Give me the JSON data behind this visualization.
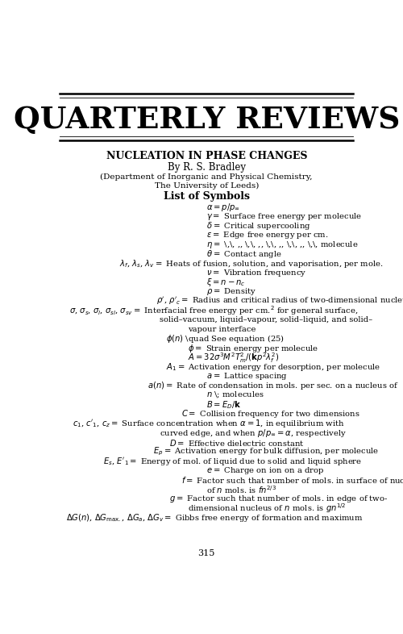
{
  "title_journal": "QUARTERLY REVIEWS",
  "paper_title": "NUCLEATION IN PHASE CHANGES",
  "author": "By R. S. Bradley",
  "affiliation1": "(Department of Inorganic and Physical Chemistry,",
  "affiliation2": "The University of Leeds)",
  "section": "List of Symbols",
  "page_number": "315",
  "symbol_lines": [
    [
      0.5,
      "$\\alpha = p/p_\\infty$"
    ],
    [
      0.5,
      "$\\gamma =$ Surface free energy per molecule"
    ],
    [
      0.5,
      "$\\delta =$ Critical supercooling"
    ],
    [
      0.5,
      "$\\varepsilon =$ Edge free energy per cm."
    ],
    [
      0.5,
      "$\\eta =$ \\,\\, ,, \\,\\, ,, \\,\\, ,, \\,\\, ,, \\,\\, molecule"
    ],
    [
      0.5,
      "$\\theta =$ Contact angle"
    ],
    [
      0.22,
      "$\\lambda_f$, $\\lambda_s$, $\\lambda_v =$ Heats of fusion, solution, and vaporisation, per mole."
    ],
    [
      0.5,
      "$\\nu =$ Vibration frequency"
    ],
    [
      0.5,
      "$\\xi = n - n_c$"
    ],
    [
      0.5,
      "$\\rho =$ Density"
    ],
    [
      0.34,
      "$\\rho'$, $\\rho'_c =$ Radius and critical radius of two-dimensional nucleus"
    ],
    [
      0.06,
      "$\\sigma$, $\\sigma_s$, $\\sigma_l$, $\\sigma_{sl}$, $\\sigma_{sv} =$ Interfacial free energy per cm.$^2$ for general surface,"
    ],
    [
      0.35,
      "solid–vacuum, liquid–vapour, solid–liquid, and solid–"
    ],
    [
      0.44,
      "vapour interface"
    ],
    [
      0.37,
      "$\\phi(n)$ \\quad See equation (25)"
    ],
    [
      0.44,
      "$\\phi =$ Strain energy per molecule"
    ],
    [
      0.44,
      "$A = 32\\sigma^3 M^2 T_m^2/(\\mathbf{k}p^2\\lambda_f^2)$"
    ],
    [
      0.37,
      "$A_1 =$ Activation energy for desorption, per molecule"
    ],
    [
      0.5,
      "$a =$ Lattice spacing"
    ],
    [
      0.31,
      "$a(n) =$ Rate of condensation in mols. per sec. on a nucleus of"
    ],
    [
      0.5,
      "$n$ \\; molecules"
    ],
    [
      0.5,
      "$B = E_D/\\mathbf{k}$"
    ],
    [
      0.42,
      "$C =$ Collision frequency for two dimensions"
    ],
    [
      0.07,
      "$c_1$, $c'_1$, $c_z =$ Surface concentration when $\\alpha = 1$, in equilibrium with"
    ],
    [
      0.35,
      "curved edge, and when $p/p_\\infty = \\alpha$, respectively"
    ],
    [
      0.38,
      "$D =$ Effective dielectric constant"
    ],
    [
      0.33,
      "$E_p =$ Activation energy for bulk diffusion, per molecule"
    ],
    [
      0.17,
      "$E_s$, $E'_1 =$ Energy of mol. of liquid due to solid and liquid sphere"
    ],
    [
      0.5,
      "$e =$ Charge on ion on a drop"
    ],
    [
      0.42,
      "$f =$ Factor such that number of mols. in surface of nucleus"
    ],
    [
      0.5,
      "of $n$ mols. is $fn^{2/3}$"
    ],
    [
      0.38,
      "$g =$ Factor such that number of mols. in edge of two-"
    ],
    [
      0.44,
      "dimensional nucleus of $n$ mols. is $gn^{1/2}$"
    ],
    [
      0.05,
      "$\\Delta G(n)$, $\\Delta G_{\\mathrm{max.}}$, $\\Delta G_a$, $\\Delta G_v =$ Gibbs free energy of formation and maximum"
    ]
  ]
}
